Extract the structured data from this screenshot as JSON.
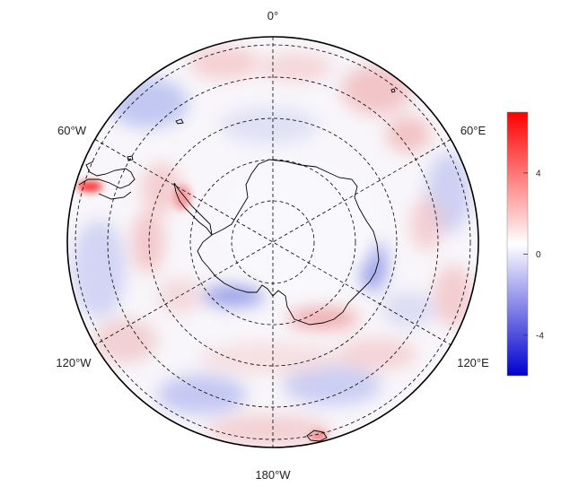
{
  "map": {
    "projection": "south-polar-stereographic",
    "longitude_labels": {
      "top": "0°",
      "upper_left": "60°W",
      "upper_right": "60°E",
      "lower_left": "120°W",
      "lower_right": "120°E",
      "bottom": "180°W"
    },
    "meridian_step_deg": 30,
    "parallel_rings": 5,
    "gridline_style": "dashed",
    "coastlines": [
      "Antarctica",
      "Antarctic Peninsula",
      "South America tip",
      "small islands"
    ]
  },
  "colorbar": {
    "colormap": "blue-white-red diverging",
    "min_color": "#0000d0",
    "mid_color": "#ffffff",
    "max_color": "#ff0000",
    "range": [
      -6,
      7
    ],
    "tick_labels": [
      "4",
      "0",
      "-4"
    ],
    "tick_values": [
      4,
      0,
      -4
    ]
  },
  "chart_data": {
    "type": "heatmap",
    "title": "",
    "value_range": [
      -6,
      7
    ],
    "center_value": 0,
    "notable_features": [
      {
        "region": "Antarctic Peninsula / southern South America",
        "sign": "strong positive",
        "approx_max": 7
      },
      {
        "region": "Amundsen-Bellingshausen coast",
        "sign": "negative",
        "approx_min": -3
      },
      {
        "region": "Wilkes Land coast (near 120E)",
        "sign": "negative",
        "approx_min": -3
      },
      {
        "region": "Ross Sea ice shelf front",
        "sign": "positive",
        "approx_max": 3
      },
      {
        "region": "Antarctic interior",
        "sign": "near zero"
      },
      {
        "region": "Southern Ocean bands",
        "sign": "alternating weak positive/negative",
        "approx_range": [
          -2,
          2
        ]
      }
    ]
  }
}
